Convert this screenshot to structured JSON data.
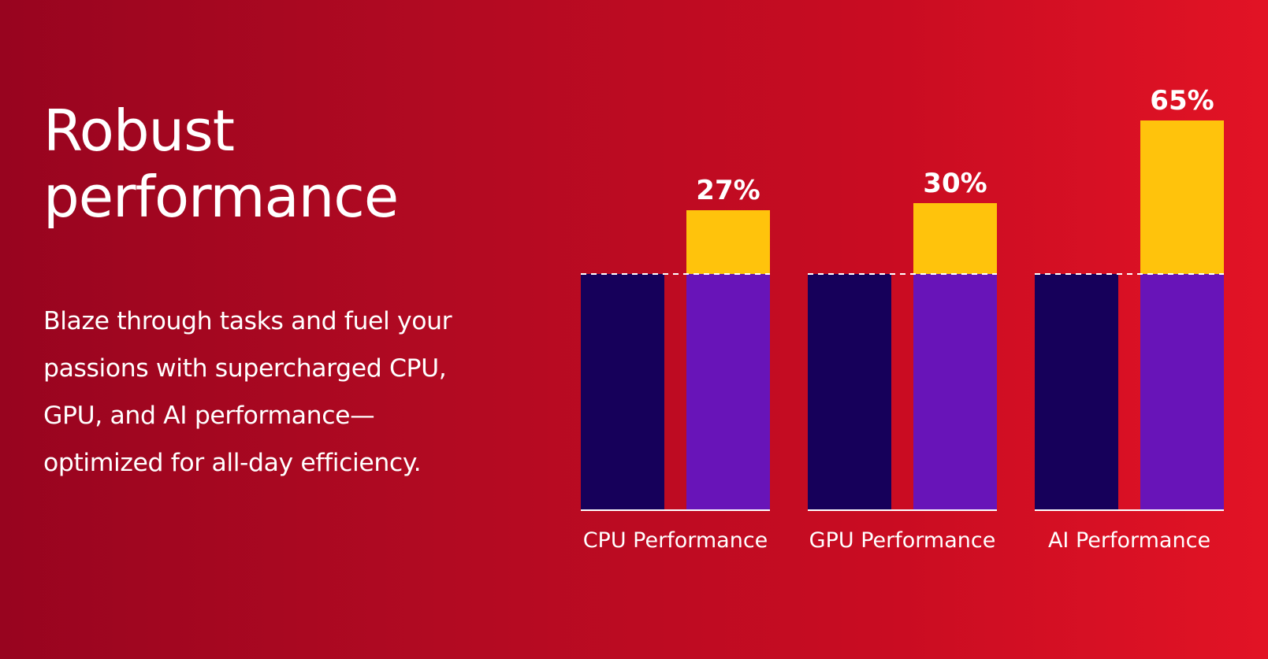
{
  "headline": {
    "line1": "Robust",
    "line2": "performance"
  },
  "body": {
    "lines": [
      "Blaze through tasks and fuel your",
      "passions with supercharged CPU,",
      "GPU, and AI performance—",
      "optimized for all-day efficiency."
    ]
  },
  "colors": {
    "background_start": "#98041f",
    "background_end": "#e21325",
    "baseline_bar": "#16005a",
    "comparison_bar": "#6814b8",
    "improvement": "#ffc30c"
  },
  "chart_data": {
    "type": "bar",
    "stacked": true,
    "categories": [
      "CPU Performance",
      "GPU Performance",
      "AI Performance"
    ],
    "baseline": [
      100,
      100,
      100
    ],
    "improvement_percent": [
      27,
      30,
      65
    ],
    "value_labels": [
      "27%",
      "30%",
      "65%"
    ],
    "ylim": [
      0,
      170
    ],
    "grid": false,
    "legend": "none"
  }
}
